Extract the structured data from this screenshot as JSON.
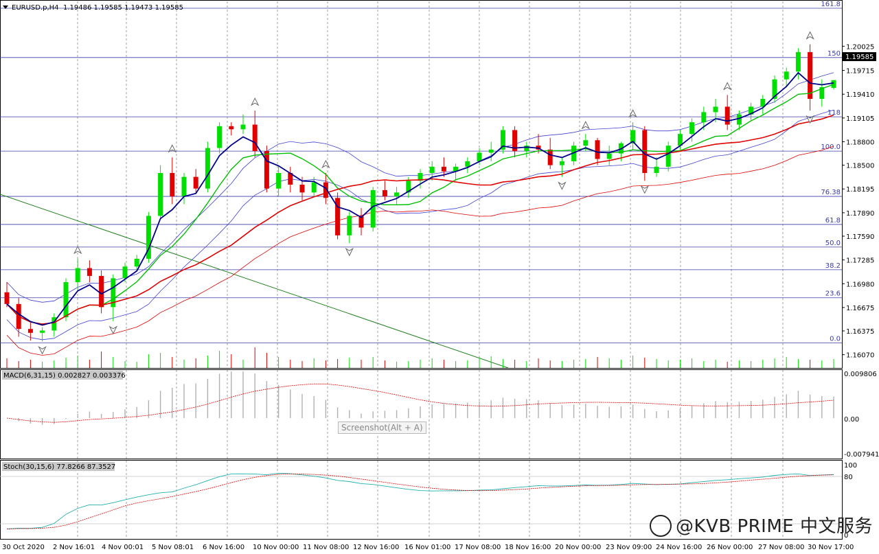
{
  "title_bar": {
    "arrow_icon": "dropdown-triangle-icon",
    "symbol": "EURUSD.p,H4",
    "ohlc": "1.19486 1.19585 1.19473 1.19585"
  },
  "price_axis": {
    "labels": [
      {
        "text": "1.20025",
        "value": 1.20025
      },
      {
        "text": "1.19715",
        "value": 1.19715
      },
      {
        "text": "1.19410",
        "value": 1.1941
      },
      {
        "text": "1.19105",
        "value": 1.19105
      },
      {
        "text": "1.18800",
        "value": 1.188
      },
      {
        "text": "1.18500",
        "value": 1.185
      },
      {
        "text": "1.18195",
        "value": 1.18195
      },
      {
        "text": "1.17890",
        "value": 1.1789
      },
      {
        "text": "1.17590",
        "value": 1.1759
      },
      {
        "text": "1.17285",
        "value": 1.17285
      },
      {
        "text": "1.16980",
        "value": 1.1698
      },
      {
        "text": "1.16675",
        "value": 1.16675
      },
      {
        "text": "1.16375",
        "value": 1.16375
      },
      {
        "text": "1.16070",
        "value": 1.1607
      }
    ],
    "current_price": "1.19585"
  },
  "fibonacci": [
    {
      "label": "161.8",
      "price": 1.206
    },
    {
      "label": "150",
      "price": 1.1988
    },
    {
      "label": "118",
      "price": 1.1912
    },
    {
      "label": "100.0",
      "price": 1.1868
    },
    {
      "label": "76.38",
      "price": 1.181
    },
    {
      "label": "61.8",
      "price": 1.1774
    },
    {
      "label": "50.0",
      "price": 1.1745
    },
    {
      "label": "38.2",
      "price": 1.1716
    },
    {
      "label": "23.6",
      "price": 1.168
    },
    {
      "label": "0.0",
      "price": 1.1622
    }
  ],
  "time_axis": [
    "30 Oct 2020",
    "2 Nov 16:01",
    "4 Nov 00:01",
    "5 Nov 08:01",
    "6 Nov 16:00",
    "10 Nov 00:00",
    "11 Nov 08:00",
    "12 Nov 16:00",
    "16 Nov 01:00",
    "17 Nov 08:00",
    "18 Nov 16:00",
    "20 Nov 00:00",
    "23 Nov 09:00",
    "24 Nov 16:00",
    "26 Nov 00:00",
    "27 Nov 08:00",
    "30 Nov 17:00"
  ],
  "macd": {
    "label": "MACD(6,31,15) 0.002827 0.003376",
    "axis_top": "0.009806",
    "axis_zero": "0.00",
    "axis_bottom": "-0.007941"
  },
  "stoch": {
    "label": "Stoch(30,15,6) 77.8266 87.3527",
    "axis_100": "100",
    "axis_80": "80",
    "axis_0": "0"
  },
  "tooltip": "Screenshot(Alt + A)",
  "watermark": "@KVB PRIME 中文服务",
  "colors": {
    "bull": "#00e000",
    "bear": "#e00000",
    "fib": "#3a3aa6",
    "ma_fast": "#00008b",
    "ma_mid": "#e00000",
    "ma_green": "#00c000",
    "band": "#4040d0",
    "macd_signal": "#e00000",
    "stoch_main": "#20b0b0",
    "stoch_signal": "#e00000"
  },
  "chart_data": {
    "type": "candlestick",
    "symbol": "EURUSD.p",
    "timeframe": "H4",
    "ylim": [
      1.159,
      1.206
    ],
    "candles": [
      [
        1.1687,
        1.17,
        1.1668,
        1.1672
      ],
      [
        1.1672,
        1.168,
        1.163,
        1.164
      ],
      [
        1.164,
        1.1648,
        1.1625,
        1.1635
      ],
      [
        1.1635,
        1.1642,
        1.1624,
        1.1638
      ],
      [
        1.1638,
        1.166,
        1.163,
        1.1655
      ],
      [
        1.1655,
        1.1705,
        1.165,
        1.17
      ],
      [
        1.17,
        1.173,
        1.169,
        1.1718
      ],
      [
        1.1718,
        1.1728,
        1.17,
        1.1708
      ],
      [
        1.1708,
        1.1715,
        1.166,
        1.1668
      ],
      [
        1.1668,
        1.171,
        1.165,
        1.1705
      ],
      [
        1.1705,
        1.1725,
        1.17,
        1.172
      ],
      [
        1.172,
        1.1735,
        1.1715,
        1.173
      ],
      [
        1.173,
        1.179,
        1.1725,
        1.1785
      ],
      [
        1.1785,
        1.185,
        1.178,
        1.184
      ],
      [
        1.184,
        1.186,
        1.18,
        1.181
      ],
      [
        1.181,
        1.184,
        1.18,
        1.1835
      ],
      [
        1.1835,
        1.1845,
        1.1815,
        1.182
      ],
      [
        1.182,
        1.188,
        1.1815,
        1.1872
      ],
      [
        1.1872,
        1.1905,
        1.1865,
        1.19
      ],
      [
        1.19,
        1.1905,
        1.1888,
        1.1896
      ],
      [
        1.1896,
        1.1915,
        1.189,
        1.1902
      ],
      [
        1.1902,
        1.192,
        1.186,
        1.1868
      ],
      [
        1.1868,
        1.1875,
        1.1815,
        1.182
      ],
      [
        1.182,
        1.185,
        1.181,
        1.184
      ],
      [
        1.184,
        1.1848,
        1.1815,
        1.1825
      ],
      [
        1.1825,
        1.1835,
        1.1805,
        1.1815
      ],
      [
        1.1815,
        1.1835,
        1.181,
        1.1828
      ],
      [
        1.1828,
        1.184,
        1.18,
        1.1808
      ],
      [
        1.1808,
        1.1815,
        1.1755,
        1.176
      ],
      [
        1.176,
        1.179,
        1.175,
        1.1785
      ],
      [
        1.1785,
        1.1795,
        1.176,
        1.177
      ],
      [
        1.177,
        1.1822,
        1.1765,
        1.1818
      ],
      [
        1.1818,
        1.183,
        1.1805,
        1.181
      ],
      [
        1.181,
        1.1822,
        1.18,
        1.1815
      ],
      [
        1.1815,
        1.1835,
        1.1808,
        1.183
      ],
      [
        1.183,
        1.1845,
        1.182,
        1.184
      ],
      [
        1.184,
        1.1855,
        1.183,
        1.1848
      ],
      [
        1.1848,
        1.186,
        1.1835,
        1.1842
      ],
      [
        1.1842,
        1.1852,
        1.183,
        1.1848
      ],
      [
        1.1848,
        1.186,
        1.184,
        1.1855
      ],
      [
        1.1855,
        1.1872,
        1.185,
        1.1866
      ],
      [
        1.1866,
        1.188,
        1.1855,
        1.187
      ],
      [
        1.187,
        1.19,
        1.1865,
        1.1895
      ],
      [
        1.1895,
        1.19,
        1.186,
        1.1868
      ],
      [
        1.1868,
        1.188,
        1.186,
        1.1875
      ],
      [
        1.1875,
        1.189,
        1.1865,
        1.187
      ],
      [
        1.187,
        1.1885,
        1.1845,
        1.185
      ],
      [
        1.185,
        1.186,
        1.1835,
        1.1855
      ],
      [
        1.1855,
        1.188,
        1.185,
        1.1875
      ],
      [
        1.1875,
        1.189,
        1.1868,
        1.1882
      ],
      [
        1.1882,
        1.1885,
        1.185,
        1.1858
      ],
      [
        1.1858,
        1.1875,
        1.185,
        1.1865
      ],
      [
        1.1865,
        1.188,
        1.1855,
        1.1878
      ],
      [
        1.1878,
        1.1905,
        1.187,
        1.1895
      ],
      [
        1.1895,
        1.19,
        1.183,
        1.184
      ],
      [
        1.184,
        1.186,
        1.1835,
        1.1848
      ],
      [
        1.1848,
        1.188,
        1.1842,
        1.1875
      ],
      [
        1.1875,
        1.1895,
        1.187,
        1.189
      ],
      [
        1.189,
        1.191,
        1.188,
        1.1905
      ],
      [
        1.1905,
        1.1925,
        1.1895,
        1.1918
      ],
      [
        1.1918,
        1.1935,
        1.1905,
        1.1925
      ],
      [
        1.1925,
        1.194,
        1.1895,
        1.1902
      ],
      [
        1.1902,
        1.192,
        1.1895,
        1.1915
      ],
      [
        1.1915,
        1.193,
        1.1908,
        1.1925
      ],
      [
        1.1925,
        1.194,
        1.1915,
        1.1935
      ],
      [
        1.1935,
        1.1965,
        1.193,
        1.196
      ],
      [
        1.196,
        1.1975,
        1.195,
        1.197
      ],
      [
        1.197,
        1.2,
        1.196,
        1.1995
      ],
      [
        1.1995,
        1.2005,
        1.192,
        1.1935
      ],
      [
        1.1935,
        1.196,
        1.1925,
        1.195
      ],
      [
        1.1949,
        1.1959,
        1.1947,
        1.1959
      ]
    ],
    "volume": [
      14,
      10,
      12,
      9,
      11,
      15,
      18,
      12,
      24,
      16,
      10,
      9,
      20,
      22,
      16,
      12,
      14,
      18,
      25,
      20,
      12,
      30,
      22,
      16,
      12,
      10,
      14,
      11,
      13,
      15,
      12,
      16,
      11,
      9,
      10,
      12,
      14,
      12,
      10,
      11,
      15,
      17,
      13,
      12,
      10,
      14,
      11,
      10,
      12,
      13,
      16,
      14,
      12,
      18,
      15,
      13,
      11,
      12,
      14,
      10,
      12,
      9,
      11,
      10,
      12,
      14,
      16,
      13,
      12,
      11,
      13
    ]
  }
}
